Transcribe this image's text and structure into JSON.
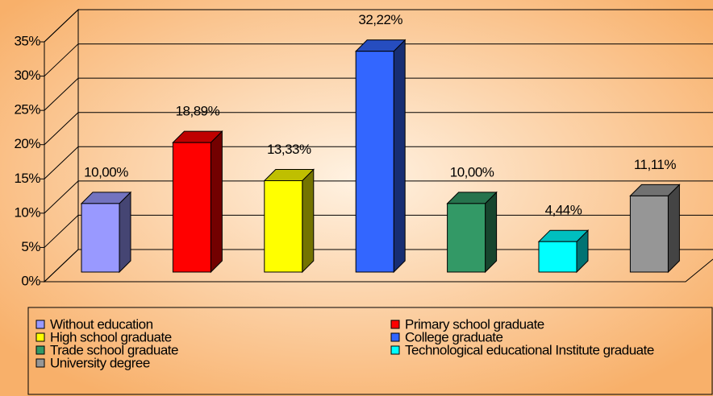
{
  "chart_data": {
    "type": "bar3d",
    "categories": [
      "Without education",
      "Primary school graduate",
      "High school graduate",
      "College graduate",
      "Trade school graduate",
      "Technological educational Institute graduate",
      "University degree"
    ],
    "values": [
      10,
      18.89,
      13.33,
      32.22,
      10,
      4.44,
      11.11
    ],
    "value_labels": [
      "10,00%",
      "18,89%",
      "13,33%",
      "32,22%",
      "10,00%",
      "4,44%",
      "11,11%"
    ],
    "colors": [
      "#9999ff",
      "#ff0000",
      "#ffff00",
      "#3366ff",
      "#339966",
      "#00ffff",
      "#969696"
    ],
    "ylim": [
      0,
      35
    ],
    "yticks": [
      {
        "value": 0,
        "label": "0%"
      },
      {
        "value": 5,
        "label": "5%"
      },
      {
        "value": 10,
        "label": "10%"
      },
      {
        "value": 15,
        "label": "15%"
      },
      {
        "value": 20,
        "label": "20%"
      },
      {
        "value": 25,
        "label": "25%"
      },
      {
        "value": 30,
        "label": "30%"
      },
      {
        "value": 35,
        "label": "35%"
      }
    ],
    "grid": true,
    "legend": "bottom"
  }
}
